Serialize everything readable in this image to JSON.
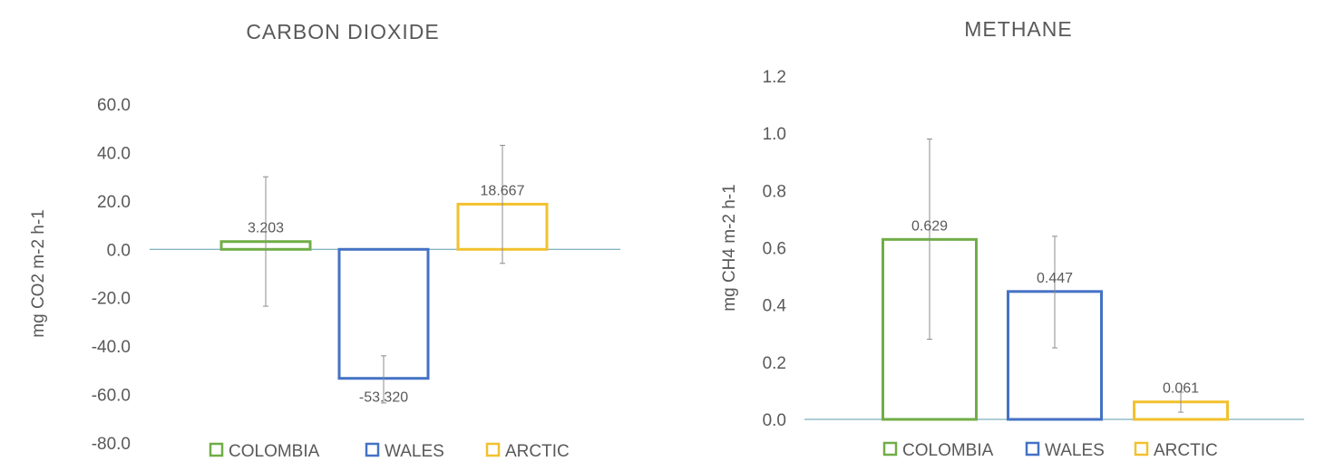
{
  "chart_data": [
    {
      "type": "bar",
      "title": "CARBON DIOXIDE",
      "ylabel": "mg CO2 m-2 h-1",
      "ylim": [
        -80,
        60
      ],
      "yticks": [
        "60.0",
        "40.0",
        "20.0",
        "0.0",
        "-20.0",
        "-40.0",
        "-60.0",
        "-80.0"
      ],
      "ytick_values": [
        60,
        40,
        20,
        0,
        -20,
        -40,
        -60,
        -80
      ],
      "categories": [
        "COLOMBIA",
        "WALES",
        "ARCTIC"
      ],
      "values": [
        3.203,
        -53.32,
        18.667
      ],
      "data_labels": [
        "3.203",
        "-53.320",
        "18.667"
      ],
      "error_low": [
        -23.5,
        -63.5,
        -5.8
      ],
      "error_high": [
        30.0,
        -44.0,
        43.0
      ],
      "colors": [
        "#70AD47",
        "#4472C4",
        "#F2C12E"
      ],
      "legend": [
        "COLOMBIA",
        "WALES",
        "ARCTIC"
      ],
      "legend_position": "bottom",
      "grid": false
    },
    {
      "type": "bar",
      "title": "METHANE",
      "ylabel": "mg CH4 m-2 h-1",
      "ylim": [
        0,
        1.2
      ],
      "yticks": [
        "1.2",
        "1.0",
        "0.8",
        "0.6",
        "0.4",
        "0.2",
        "0.0"
      ],
      "ytick_values": [
        1.2,
        1.0,
        0.8,
        0.6,
        0.4,
        0.2,
        0.0
      ],
      "categories": [
        "COLOMBIA",
        "WALES",
        "ARCTIC"
      ],
      "values": [
        0.629,
        0.447,
        0.061
      ],
      "data_labels": [
        "0.629",
        "0.447",
        "0.061"
      ],
      "error_low": [
        0.28,
        0.25,
        0.025
      ],
      "error_high": [
        0.98,
        0.64,
        0.095
      ],
      "colors": [
        "#70AD47",
        "#4472C4",
        "#F2C12E"
      ],
      "legend": [
        "COLOMBIA",
        "WALES",
        "ARCTIC"
      ],
      "legend_position": "bottom",
      "grid": false
    }
  ]
}
